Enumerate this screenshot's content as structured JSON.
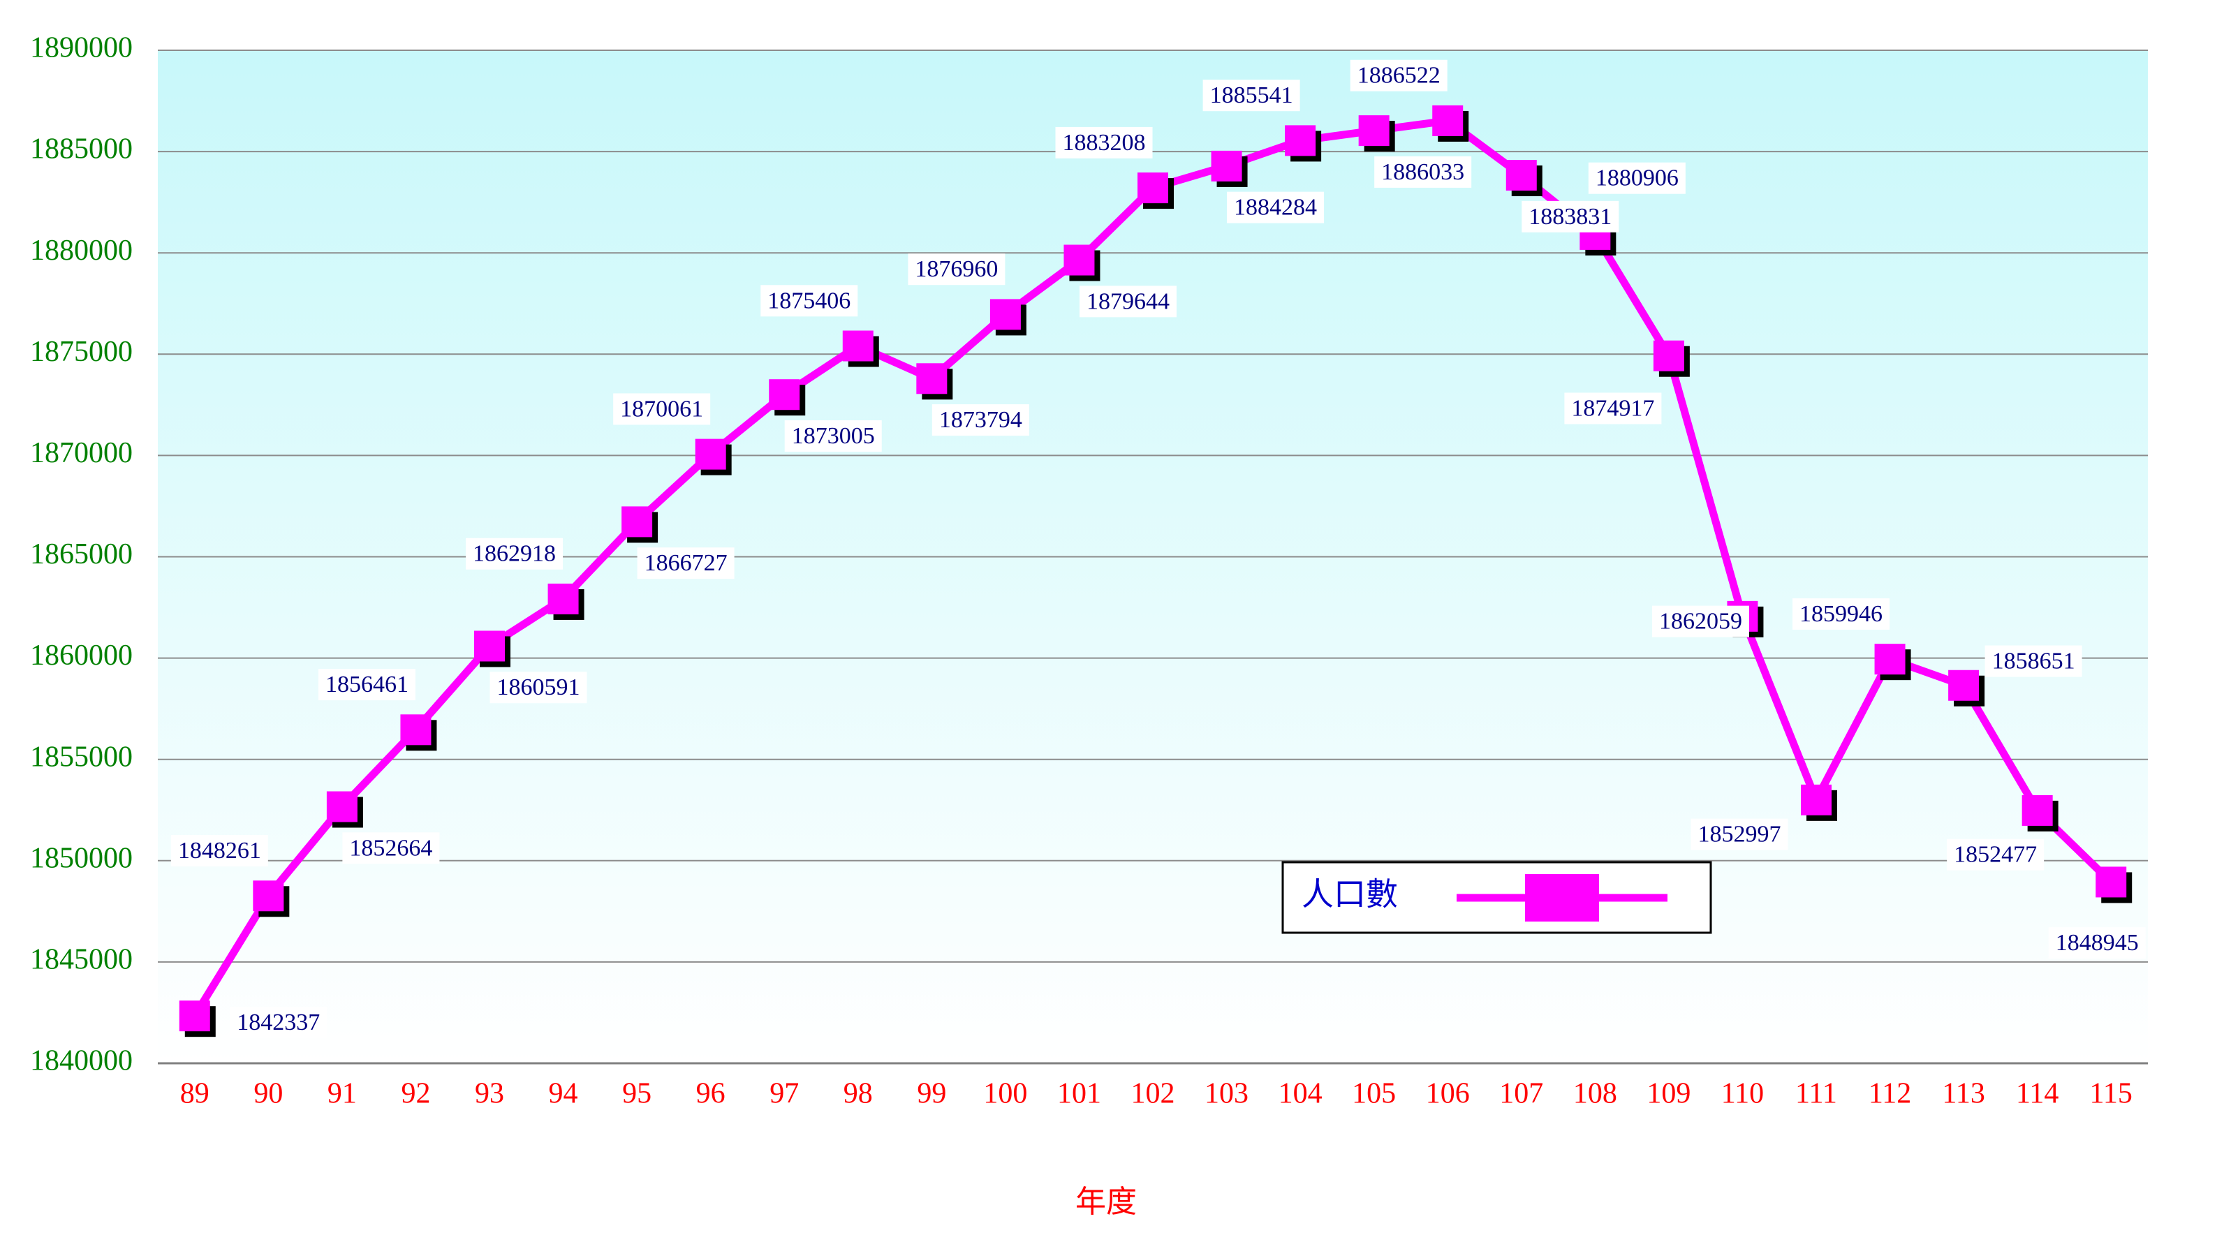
{
  "chart_data": {
    "type": "line",
    "x_label": "年度",
    "categories": [
      "89",
      "90",
      "91",
      "92",
      "93",
      "94",
      "95",
      "96",
      "97",
      "98",
      "99",
      "100",
      "101",
      "102",
      "103",
      "104",
      "105",
      "106",
      "107",
      "108",
      "109",
      "110",
      "111",
      "112",
      "113",
      "114",
      "115"
    ],
    "series": [
      {
        "name": "人口數",
        "color": "#ff00ff",
        "values": [
          1842337,
          1848261,
          1852664,
          1856461,
          1860591,
          1862918,
          1866727,
          1870061,
          1873005,
          1875406,
          1873794,
          1876960,
          1879644,
          1883208,
          1884284,
          1885541,
          1886033,
          1886522,
          1883831,
          1880906,
          1874917,
          1862059,
          1852997,
          1859946,
          1858651,
          1852477,
          1848945
        ]
      }
    ],
    "ylim": [
      1840000,
      1890000
    ],
    "yticks": [
      1840000,
      1845000,
      1850000,
      1855000,
      1860000,
      1865000,
      1870000,
      1875000,
      1880000,
      1885000,
      1890000
    ],
    "grid": true,
    "legend": "lower-right"
  }
}
